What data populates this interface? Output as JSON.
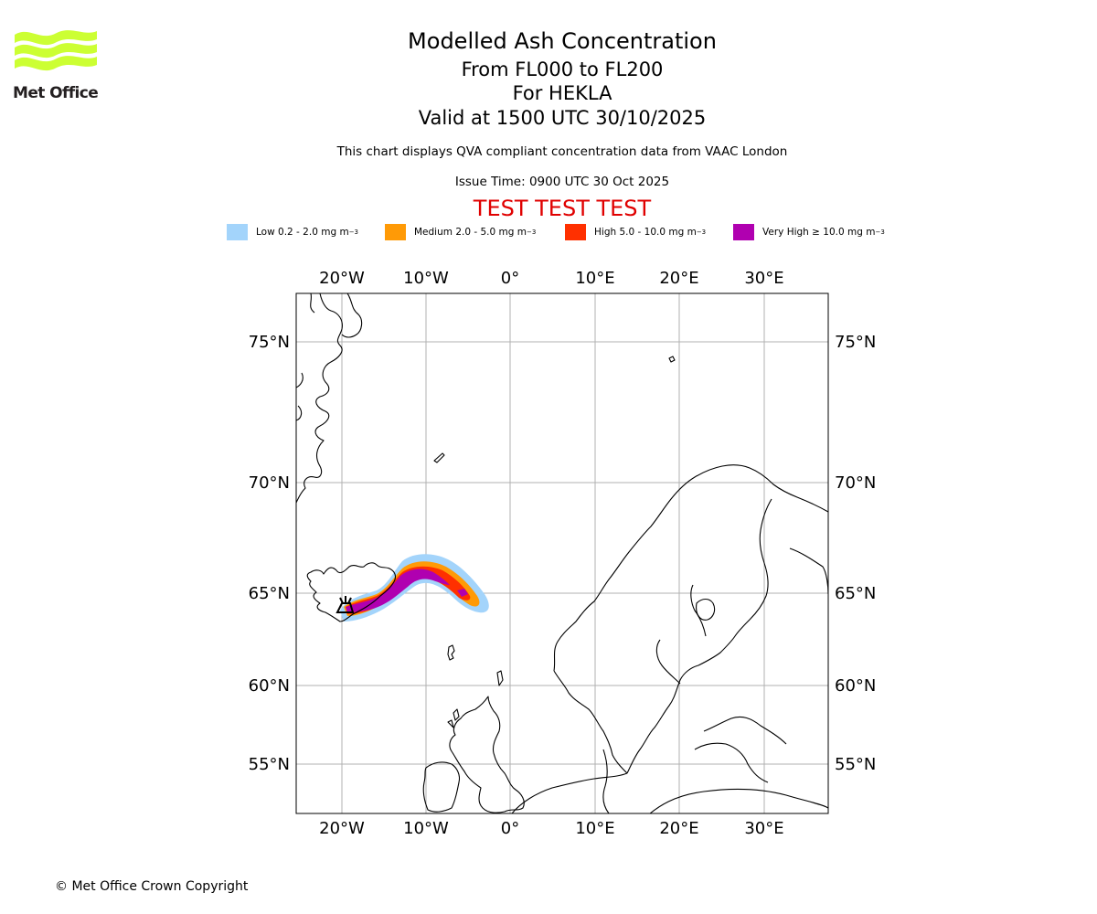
{
  "header": {
    "title": "Modelled Ash Concentration",
    "levels": "From FL000 to FL200",
    "volcano": "For HEKLA",
    "valid": "Valid at 1500 UTC 30/10/2025",
    "description": "This chart displays QVA compliant concentration data from VAAC London",
    "issue_time": "Issue Time: 0900 UTC 30 Oct 2025",
    "test_banner": "TEST TEST TEST"
  },
  "logo": {
    "text": "Met Office",
    "color": "#ccff33"
  },
  "legend": [
    {
      "label": "Low 0.2 - 2.0 mg m",
      "unit_exp": "−3",
      "color": "#a3d4fb"
    },
    {
      "label": "Medium 2.0 - 5.0 mg m",
      "unit_exp": "−3",
      "color": "#ff9a06"
    },
    {
      "label": "High 5.0 - 10.0 mg m",
      "unit_exp": "−3",
      "color": "#ff3000"
    },
    {
      "label": "Very High ≥ 10.0 mg m",
      "unit_exp": "−3",
      "color": "#b000b0"
    }
  ],
  "map": {
    "lon_labels": [
      "20°W",
      "10°W",
      "0°",
      "10°E",
      "20°E",
      "30°E"
    ],
    "lat_labels": [
      "75°N",
      "70°N",
      "65°N",
      "60°N",
      "55°N"
    ],
    "volcano_marker": "volcano-symbol-icon"
  },
  "footer": {
    "copyright": "© Met Office Crown Copyright"
  }
}
